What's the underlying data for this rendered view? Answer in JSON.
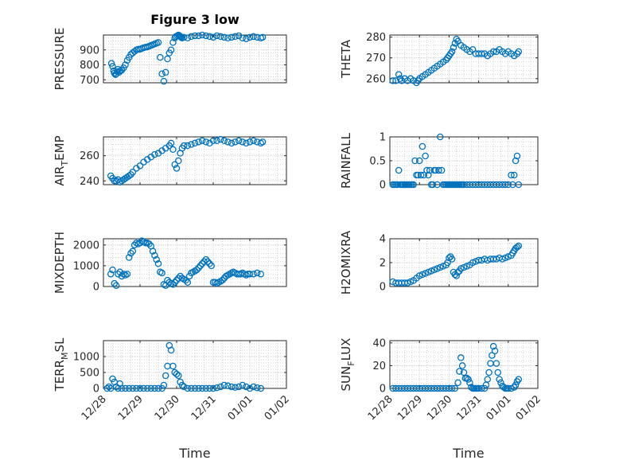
{
  "title": "Figure 3 low",
  "x_label": "Time",
  "x_ticks": [
    "12/28",
    "12/29",
    "12/30",
    "12/31",
    "01/01",
    "01/02"
  ],
  "marker_color": "#0072BD",
  "chart_data": [
    {
      "type": "scatter",
      "ylabel": "PRESSURE",
      "xlim": [
        "12/28",
        "01/02"
      ],
      "ylim": [
        680,
        1000
      ],
      "yticks": [
        700,
        800,
        900
      ],
      "grid": true,
      "x": [
        0.22,
        0.25,
        0.28,
        0.3,
        0.33,
        0.35,
        0.38,
        0.4,
        0.43,
        0.46,
        0.5,
        0.55,
        0.6,
        0.65,
        0.7,
        0.75,
        0.8,
        0.85,
        0.9,
        0.95,
        1.0,
        1.05,
        1.1,
        1.15,
        1.2,
        1.25,
        1.3,
        1.35,
        1.4,
        1.45,
        1.5,
        1.55,
        1.6,
        1.65,
        1.7,
        1.75,
        1.8,
        1.85,
        1.9,
        1.95,
        1.98,
        2.02,
        2.05,
        2.08,
        2.1,
        2.12,
        2.15,
        2.2,
        2.3,
        2.4,
        2.5,
        2.6,
        2.7,
        2.8,
        2.9,
        3.0,
        3.1,
        3.2,
        3.3,
        3.4,
        3.5,
        3.6,
        3.7,
        3.8,
        3.9,
        4.0,
        4.1,
        4.2,
        4.3,
        4.35
      ],
      "y": [
        810,
        790,
        760,
        745,
        735,
        740,
        755,
        770,
        750,
        760,
        765,
        780,
        800,
        830,
        850,
        870,
        880,
        890,
        900,
        905,
        905,
        910,
        915,
        918,
        920,
        925,
        930,
        935,
        940,
        945,
        950,
        850,
        740,
        690,
        750,
        840,
        880,
        900,
        950,
        980,
        990,
        995,
        1000,
        995,
        990,
        985,
        980,
        985,
        980,
        990,
        995,
        995,
        1000,
        995,
        990,
        985,
        995,
        990,
        985,
        980,
        985,
        990,
        995,
        980,
        975,
        985,
        990,
        985,
        980,
        985
      ]
    },
    {
      "type": "scatter",
      "ylabel": "THETA",
      "xlim": [
        "12/28",
        "01/02"
      ],
      "ylim": [
        258,
        281
      ],
      "yticks": [
        260,
        270,
        280
      ],
      "grid": true,
      "x": [
        0.1,
        0.2,
        0.3,
        0.35,
        0.4,
        0.5,
        0.6,
        0.7,
        0.8,
        0.9,
        0.95,
        1.0,
        1.1,
        1.2,
        1.3,
        1.4,
        1.5,
        1.6,
        1.7,
        1.8,
        1.9,
        1.95,
        2.0,
        2.05,
        2.1,
        2.15,
        2.2,
        2.25,
        2.3,
        2.4,
        2.5,
        2.6,
        2.7,
        2.8,
        2.9,
        3.0,
        3.1,
        3.2,
        3.3,
        3.4,
        3.5,
        3.6,
        3.7,
        3.8,
        3.9,
        4.0,
        4.1,
        4.2,
        4.3,
        4.35
      ],
      "y": [
        259,
        259,
        262,
        260,
        259,
        260,
        259,
        260,
        259,
        258,
        259,
        260,
        261,
        262,
        263,
        264,
        265,
        266,
        267,
        268,
        269,
        270,
        271,
        272,
        273,
        275,
        277,
        279,
        278,
        276,
        275,
        274,
        273,
        274,
        272,
        272,
        272,
        272,
        271,
        272,
        273,
        273,
        274,
        273,
        272,
        273,
        272,
        271,
        272,
        273
      ]
    },
    {
      "type": "scatter",
      "ylabel": "AIR_TEMP",
      "xlim": [
        "12/28",
        "01/02"
      ],
      "ylim": [
        237,
        275
      ],
      "yticks": [
        240,
        260
      ],
      "grid": true,
      "x": [
        0.2,
        0.25,
        0.3,
        0.35,
        0.4,
        0.45,
        0.5,
        0.55,
        0.6,
        0.65,
        0.7,
        0.75,
        0.8,
        0.9,
        1.0,
        1.1,
        1.2,
        1.3,
        1.4,
        1.5,
        1.6,
        1.7,
        1.8,
        1.85,
        1.9,
        1.95,
        2.0,
        2.05,
        2.1,
        2.15,
        2.2,
        2.3,
        2.4,
        2.5,
        2.6,
        2.7,
        2.8,
        2.9,
        3.0,
        3.1,
        3.2,
        3.3,
        3.4,
        3.5,
        3.6,
        3.7,
        3.8,
        3.9,
        4.0,
        4.1,
        4.2,
        4.3,
        4.35
      ],
      "y": [
        244,
        242,
        240,
        240,
        241,
        239,
        240,
        241,
        242,
        243,
        244,
        245,
        247,
        250,
        252,
        255,
        257,
        259,
        261,
        262,
        264,
        266,
        268,
        270,
        265,
        253,
        250,
        256,
        262,
        266,
        268,
        268,
        269,
        270,
        271,
        272,
        271,
        270,
        272,
        272,
        273,
        272,
        271,
        270,
        271,
        272,
        271,
        270,
        271,
        272,
        271,
        270,
        271
      ]
    },
    {
      "type": "scatter",
      "ylabel": "RAINFALL",
      "xlim": [
        "12/28",
        "01/02"
      ],
      "ylim": [
        0,
        1
      ],
      "yticks": [
        0,
        0.5,
        1
      ],
      "grid": true,
      "x": [
        0.1,
        0.15,
        0.2,
        0.25,
        0.3,
        0.35,
        0.4,
        0.45,
        0.5,
        0.55,
        0.6,
        0.65,
        0.7,
        0.75,
        0.8,
        0.85,
        0.9,
        0.95,
        1.0,
        1.05,
        1.1,
        1.15,
        1.2,
        1.25,
        1.3,
        1.35,
        1.4,
        1.45,
        1.5,
        1.55,
        1.6,
        1.65,
        1.7,
        1.75,
        1.8,
        1.85,
        1.9,
        1.95,
        2.0,
        2.05,
        2.1,
        2.15,
        2.2,
        2.25,
        2.3,
        2.35,
        2.4,
        2.45,
        2.5,
        2.6,
        2.7,
        2.8,
        2.9,
        3.0,
        3.1,
        3.2,
        3.3,
        3.4,
        3.5,
        3.6,
        3.7,
        3.8,
        3.9,
        4.0,
        4.1,
        4.15,
        4.2,
        4.25,
        4.3,
        4.35
      ],
      "y": [
        0,
        0,
        0,
        0,
        0.3,
        0,
        0,
        0,
        0,
        0,
        0,
        0,
        0,
        0,
        0,
        0.5,
        0.2,
        0.2,
        0.5,
        0.2,
        0.8,
        0.2,
        0.6,
        0.3,
        0.2,
        0.3,
        0,
        0,
        0.3,
        0.3,
        0,
        0.3,
        1.0,
        0.3,
        0,
        0,
        0,
        0,
        0,
        0,
        0,
        0,
        0,
        0,
        0,
        0,
        0,
        0,
        0,
        0,
        0,
        0,
        0,
        0,
        0,
        0,
        0,
        0,
        0,
        0,
        0,
        0,
        0,
        0,
        0.2,
        0,
        0.2,
        0.5,
        0.6,
        0
      ]
    },
    {
      "type": "scatter",
      "ylabel": "MIXDEPTH",
      "xlim": [
        "12/28",
        "01/02"
      ],
      "ylim": [
        0,
        2300
      ],
      "yticks": [
        0,
        1000,
        2000
      ],
      "grid": true,
      "x": [
        0.2,
        0.25,
        0.3,
        0.35,
        0.4,
        0.45,
        0.5,
        0.55,
        0.6,
        0.65,
        0.7,
        0.75,
        0.8,
        0.85,
        0.9,
        0.95,
        1.0,
        1.05,
        1.1,
        1.15,
        1.2,
        1.25,
        1.3,
        1.35,
        1.4,
        1.45,
        1.5,
        1.55,
        1.6,
        1.65,
        1.7,
        1.75,
        1.8,
        1.85,
        1.9,
        1.95,
        2.0,
        2.05,
        2.1,
        2.15,
        2.2,
        2.25,
        2.3,
        2.35,
        2.4,
        2.45,
        2.5,
        2.55,
        2.6,
        2.65,
        2.7,
        2.75,
        2.8,
        2.85,
        2.9,
        2.95,
        3.0,
        3.05,
        3.1,
        3.15,
        3.2,
        3.25,
        3.3,
        3.35,
        3.4,
        3.45,
        3.5,
        3.55,
        3.6,
        3.65,
        3.7,
        3.75,
        3.8,
        3.85,
        3.9,
        3.95,
        4.0,
        4.1,
        4.2,
        4.3
      ],
      "y": [
        600,
        800,
        150,
        50,
        600,
        700,
        500,
        600,
        550,
        600,
        1400,
        1600,
        1700,
        2000,
        2100,
        2050,
        2100,
        2200,
        2150,
        2100,
        2100,
        2050,
        1950,
        1700,
        1500,
        1300,
        1100,
        700,
        650,
        100,
        50,
        300,
        200,
        150,
        100,
        200,
        300,
        400,
        500,
        400,
        350,
        300,
        200,
        500,
        650,
        700,
        750,
        800,
        900,
        1000,
        1100,
        1200,
        1300,
        1200,
        1100,
        1000,
        200,
        200,
        150,
        200,
        250,
        300,
        400,
        500,
        550,
        600,
        650,
        700,
        650,
        600,
        600,
        600,
        650,
        600,
        550,
        600,
        600,
        600,
        650,
        600
      ]
    },
    {
      "type": "scatter",
      "ylabel": "H2OMIXRA",
      "xlim": [
        "12/28",
        "01/02"
      ],
      "ylim": [
        0,
        4
      ],
      "yticks": [
        0,
        2,
        4
      ],
      "grid": true,
      "x": [
        0.1,
        0.2,
        0.3,
        0.4,
        0.5,
        0.6,
        0.7,
        0.8,
        0.9,
        1.0,
        1.1,
        1.2,
        1.3,
        1.4,
        1.5,
        1.6,
        1.7,
        1.8,
        1.9,
        1.95,
        2.0,
        2.05,
        2.1,
        2.15,
        2.2,
        2.25,
        2.3,
        2.35,
        2.4,
        2.5,
        2.6,
        2.7,
        2.8,
        2.9,
        3.0,
        3.1,
        3.2,
        3.3,
        3.4,
        3.5,
        3.6,
        3.7,
        3.8,
        3.9,
        4.0,
        4.1,
        4.15,
        4.2,
        4.25,
        4.3,
        4.35
      ],
      "y": [
        0.4,
        0.3,
        0.3,
        0.3,
        0.3,
        0.3,
        0.4,
        0.5,
        0.7,
        0.9,
        1.0,
        1.1,
        1.2,
        1.3,
        1.4,
        1.5,
        1.6,
        1.7,
        1.8,
        2.0,
        2.4,
        2.5,
        2.3,
        1.2,
        1.0,
        0.9,
        1.2,
        1.3,
        1.5,
        1.6,
        1.7,
        1.8,
        2.0,
        2.1,
        2.2,
        2.2,
        2.3,
        2.2,
        2.3,
        2.3,
        2.3,
        2.4,
        2.3,
        2.4,
        2.5,
        2.6,
        2.8,
        3.0,
        3.2,
        3.3,
        3.4
      ]
    },
    {
      "type": "scatter",
      "ylabel": "TERR_MSL",
      "xlim": [
        "12/28",
        "01/02"
      ],
      "ylim": [
        0,
        1500
      ],
      "yticks": [
        0,
        500,
        1000
      ],
      "grid": true,
      "x": [
        0.1,
        0.15,
        0.2,
        0.25,
        0.3,
        0.35,
        0.4,
        0.45,
        0.5,
        0.6,
        0.7,
        0.8,
        0.9,
        1.0,
        1.1,
        1.2,
        1.3,
        1.4,
        1.5,
        1.6,
        1.65,
        1.7,
        1.75,
        1.8,
        1.85,
        1.9,
        1.95,
        2.0,
        2.05,
        2.1,
        2.15,
        2.2,
        2.3,
        2.4,
        2.5,
        2.6,
        2.7,
        2.8,
        2.9,
        3.0,
        3.1,
        3.2,
        3.3,
        3.4,
        3.5,
        3.6,
        3.7,
        3.8,
        3.9,
        4.0,
        4.1,
        4.2,
        4.3
      ],
      "y": [
        0,
        50,
        0,
        300,
        200,
        50,
        0,
        150,
        0,
        0,
        0,
        0,
        0,
        0,
        0,
        0,
        0,
        0,
        0,
        0,
        100,
        400,
        700,
        1350,
        1200,
        700,
        500,
        450,
        400,
        200,
        100,
        50,
        0,
        0,
        0,
        0,
        0,
        0,
        0,
        0,
        20,
        50,
        100,
        80,
        50,
        30,
        50,
        100,
        50,
        0,
        50,
        20,
        0
      ]
    },
    {
      "type": "scatter",
      "ylabel": "SUN_FLUX",
      "xlim": [
        "12/28",
        "01/02"
      ],
      "ylim": [
        0,
        42
      ],
      "yticks": [
        0,
        20,
        40
      ],
      "grid": true,
      "x": [
        0.1,
        0.2,
        0.3,
        0.4,
        0.5,
        0.6,
        0.7,
        0.8,
        0.9,
        1.0,
        1.1,
        1.2,
        1.3,
        1.4,
        1.5,
        1.6,
        1.7,
        1.8,
        1.9,
        2.0,
        2.1,
        2.2,
        2.3,
        2.35,
        2.4,
        2.45,
        2.5,
        2.55,
        2.6,
        2.65,
        2.7,
        2.75,
        2.8,
        2.85,
        2.9,
        2.95,
        3.0,
        3.1,
        3.2,
        3.25,
        3.3,
        3.35,
        3.4,
        3.45,
        3.5,
        3.55,
        3.6,
        3.65,
        3.7,
        3.75,
        3.8,
        3.85,
        3.9,
        3.95,
        4.0,
        4.1,
        4.2,
        4.25,
        4.3,
        4.35
      ],
      "y": [
        0,
        0,
        0,
        0,
        0,
        0,
        0,
        0,
        0,
        0,
        0,
        0,
        0,
        0,
        0,
        0,
        0,
        0,
        0,
        0,
        0,
        0,
        5,
        15,
        27,
        20,
        14,
        9,
        9,
        8,
        5,
        1,
        0,
        0,
        0,
        0,
        0,
        0,
        0,
        3,
        8,
        14,
        22,
        29,
        37,
        33,
        22,
        14,
        8,
        5,
        2,
        1,
        0,
        0,
        0,
        0,
        1,
        3,
        6,
        8
      ]
    }
  ]
}
